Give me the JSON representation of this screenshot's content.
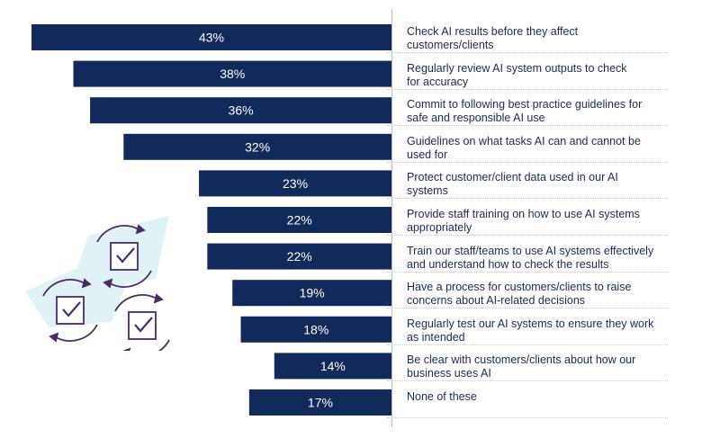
{
  "chart_data": {
    "type": "bar",
    "orientation": "horizontal",
    "title": "",
    "xlabel": "",
    "ylabel": "",
    "xlim": [
      0,
      43
    ],
    "value_suffix": "%",
    "bar_color": "#112a5b",
    "label_color": "#1b2a55",
    "categories": [
      "Check AI results before they affect customers/clients",
      "Regularly review AI system outputs to check for accuracy",
      "Commit to following best practice guidelines for safe and responsible AI use",
      "Guidelines on what tasks AI can and cannot be used for",
      "Protect customer/client data used in our AI systems",
      "Provide staff training on how to use AI systems appropriately",
      "Train our staff/teams to use AI systems effectively and understand how to check the results",
      "Have a process for customers/clients to raise concerns about AI-related decisions",
      "Regularly test our AI systems to ensure they work as intended",
      "Be clear with customers/clients about how our business uses AI",
      "None of these"
    ],
    "values": [
      43,
      38,
      36,
      32,
      23,
      22,
      22,
      19,
      18,
      14,
      17
    ]
  },
  "labels": {
    "lines": [
      [
        "Check AI results before they affect",
        "customers/clients"
      ],
      [
        "Regularly review AI system outputs to check",
        "for accuracy"
      ],
      [
        "Commit to following best practice guidelines for",
        "safe and responsible AI use"
      ],
      [
        "Guidelines on what tasks AI can and cannot be",
        "used for"
      ],
      [
        "Protect customer/client data used in our AI",
        "systems"
      ],
      [
        "Provide staff training on how to use AI systems",
        "appropriately"
      ],
      [
        "Train our staff/teams to use AI systems effectively",
        "and understand how to check the results"
      ],
      [
        "Have a process for customers/clients to raise",
        "concerns about AI-related decisions"
      ],
      [
        "Regularly test our AI systems to ensure they work",
        "as intended"
      ],
      [
        "Be clear with customers/clients about how our",
        "business uses AI"
      ],
      [
        "None of these"
      ]
    ]
  },
  "illustration": {
    "icon": "checklist-cycle-icons",
    "accent_color": "#dff3f6",
    "stroke_color": "#4a2a6b"
  }
}
